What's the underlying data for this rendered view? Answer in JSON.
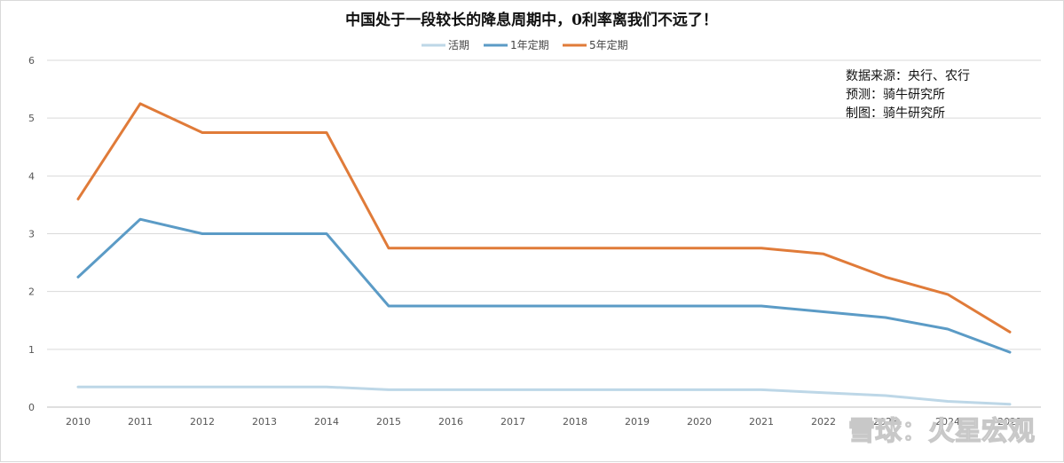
{
  "chart_data": {
    "type": "line",
    "title": "中国处于一段较长的降息周期中，0利率离我们不远了！",
    "xlabel": "",
    "ylabel": "",
    "categories": [
      "2010",
      "2011",
      "2012",
      "2013",
      "2014",
      "2015",
      "2016",
      "2017",
      "2018",
      "2019",
      "2020",
      "2021",
      "2022",
      "2023",
      "2024",
      "2025"
    ],
    "ylim": [
      0,
      6
    ],
    "yticks": [
      0,
      1,
      2,
      3,
      4,
      5,
      6
    ],
    "grid": true,
    "legend_position": "top-center",
    "series": [
      {
        "name": "活期",
        "color": "#bdd7e7",
        "values": [
          0.35,
          0.35,
          0.35,
          0.35,
          0.35,
          0.3,
          0.3,
          0.3,
          0.3,
          0.3,
          0.3,
          0.3,
          0.25,
          0.2,
          0.1,
          0.05
        ]
      },
      {
        "name": "1年定期",
        "color": "#5b9bc6",
        "values": [
          2.25,
          3.25,
          3.0,
          3.0,
          3.0,
          1.75,
          1.75,
          1.75,
          1.75,
          1.75,
          1.75,
          1.75,
          1.65,
          1.55,
          1.35,
          0.95
        ]
      },
      {
        "name": "5年定期",
        "color": "#e07b39",
        "values": [
          3.6,
          5.25,
          4.75,
          4.75,
          4.75,
          2.75,
          2.75,
          2.75,
          2.75,
          2.75,
          2.75,
          2.75,
          2.65,
          2.25,
          1.95,
          1.3
        ]
      }
    ],
    "annotations": [
      "数据来源：央行、农行",
      "预测：骑牛研究所",
      "制图：骑牛研究所"
    ]
  },
  "watermark": "雪球：火星宏观"
}
